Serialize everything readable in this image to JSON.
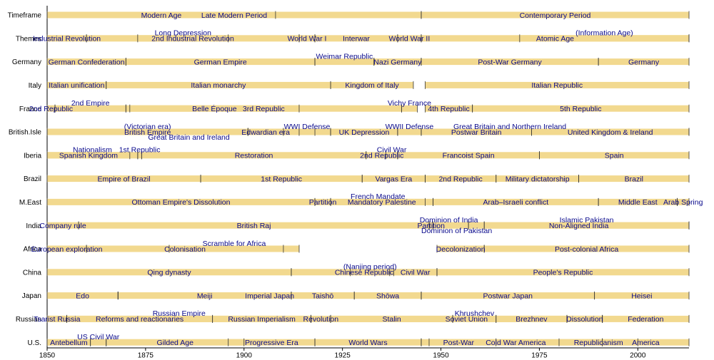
{
  "chart_data": {
    "type": "timeline",
    "xlim": [
      1850,
      2013
    ],
    "xticks": [
      1850,
      1875,
      1900,
      1925,
      1950,
      1975,
      2000
    ],
    "bar_color": "#f2d98f",
    "label_color": "#0a0a8c",
    "rows": [
      {
        "name": "Timeframe",
        "segments": [
          {
            "label": "Modern Age",
            "start": 1850,
            "end": 1908
          },
          {
            "label": "Late Modern Period",
            "start": 1850,
            "end": 1945
          },
          {
            "label": "Contemporary Period",
            "start": 1945,
            "end": 2013
          }
        ]
      },
      {
        "name": "Themes",
        "segments": [
          {
            "label": "Industrial Revolution",
            "start": 1850,
            "end": 1860
          },
          {
            "label": "2nd Industrial Revolution",
            "start": 1860,
            "end": 1914
          },
          {
            "label": "Long Depression",
            "start": 1873,
            "end": 1896
          },
          {
            "label": "World War I",
            "start": 1914,
            "end": 1918
          },
          {
            "label": "Interwar",
            "start": 1918,
            "end": 1939
          },
          {
            "label": "World War II",
            "start": 1939,
            "end": 1945
          },
          {
            "label": "Atomic Age",
            "start": 1945,
            "end": 2013
          },
          {
            "label": "(Information Age)",
            "start": 1970,
            "end": 2013
          }
        ]
      },
      {
        "name": "Germany",
        "segments": [
          {
            "label": "German Confederation",
            "start": 1850,
            "end": 1870
          },
          {
            "label": "German Empire",
            "start": 1870,
            "end": 1918
          },
          {
            "label": "Nazi Germany",
            "start": 1933,
            "end": 1945
          },
          {
            "label": "Weimar Republic",
            "start": 1918,
            "end": 1933
          },
          {
            "label": "Post-War Germany",
            "start": 1945,
            "end": 1990
          },
          {
            "label": "Germany",
            "start": 1990,
            "end": 2013
          }
        ]
      },
      {
        "name": "Italy",
        "segments": [
          {
            "label": "Italian unification",
            "start": 1850,
            "end": 1865
          },
          {
            "label": "Italian monarchy",
            "start": 1865,
            "end": 1922
          },
          {
            "label": "Kingdom of Italy",
            "start": 1922,
            "end": 1943
          },
          {
            "label": "Italian Republic",
            "start": 1946,
            "end": 2013
          }
        ]
      },
      {
        "name": "France",
        "segments": [
          {
            "label": "2nd Republic",
            "start": 1850,
            "end": 1852
          },
          {
            "label": "2nd Empire",
            "start": 1852,
            "end": 1870
          },
          {
            "label": "Belle Époque",
            "start": 1871,
            "end": 1914
          },
          {
            "label": "3rd Republic",
            "start": 1870,
            "end": 1940
          },
          {
            "label": "4th Republic",
            "start": 1946,
            "end": 1958
          },
          {
            "label": "Vichy France",
            "start": 1940,
            "end": 1944
          },
          {
            "label": "5th Republic",
            "start": 1958,
            "end": 2013
          }
        ]
      },
      {
        "name": "British.Isle",
        "segments": [
          {
            "label": "British Empire",
            "start": 1850,
            "end": 1901
          },
          {
            "label": "(Victorian era)",
            "start": 1850,
            "end": 1901
          },
          {
            "label": "Edwardian era",
            "start": 1901,
            "end": 1910
          },
          {
            "label": "Great Britain and Ireland",
            "start": 1850,
            "end": 1922
          },
          {
            "label": "UK Depression",
            "start": 1922,
            "end": 1939
          },
          {
            "label": "WWI Defense",
            "start": 1914,
            "end": 1918
          },
          {
            "label": "WWII Defense",
            "start": 1939,
            "end": 1945
          },
          {
            "label": "Postwar Britain",
            "start": 1945,
            "end": 1973
          },
          {
            "label": "United Kingdom & Ireland",
            "start": 1973,
            "end": 2013
          },
          {
            "label": "Great Britain and Northern Ireland",
            "start": 1922,
            "end": 2013
          }
        ]
      },
      {
        "name": "Iberia",
        "segments": [
          {
            "label": "Spanish Kingdom",
            "start": 1850,
            "end": 1871
          },
          {
            "label": "Nationalism",
            "start": 1850,
            "end": 1873
          },
          {
            "label": "1st Republic",
            "start": 1873,
            "end": 1874
          },
          {
            "label": "Restoration",
            "start": 1874,
            "end": 1931
          },
          {
            "label": "2nd Republic",
            "start": 1931,
            "end": 1939
          },
          {
            "label": "Civil War",
            "start": 1936,
            "end": 1939
          },
          {
            "label": "Francoist Spain",
            "start": 1939,
            "end": 1975
          },
          {
            "label": "Spain",
            "start": 1975,
            "end": 2013
          }
        ]
      },
      {
        "name": "Brazil",
        "segments": [
          {
            "label": "Empire of Brazil",
            "start": 1850,
            "end": 1889
          },
          {
            "label": "1st Republic",
            "start": 1889,
            "end": 1930
          },
          {
            "label": "Vargas Era",
            "start": 1930,
            "end": 1946
          },
          {
            "label": "2nd Republic",
            "start": 1946,
            "end": 1964
          },
          {
            "label": "Military dictatorship",
            "start": 1964,
            "end": 1985
          },
          {
            "label": "Brazil",
            "start": 1985,
            "end": 2013
          }
        ]
      },
      {
        "name": "M.East",
        "segments": [
          {
            "label": "Ottoman Empire's Dissolution",
            "start": 1850,
            "end": 1918
          },
          {
            "label": "Partition",
            "start": 1918,
            "end": 1922
          },
          {
            "label": "Mandatory Palestine",
            "start": 1922,
            "end": 1948
          },
          {
            "label": "French Mandate",
            "start": 1922,
            "end": 1946
          },
          {
            "label": "Arab–Israeli conflict",
            "start": 1948,
            "end": 1990
          },
          {
            "label": "Middle East",
            "start": 1990,
            "end": 2010
          },
          {
            "label": "Arab Spring",
            "start": 2010,
            "end": 2013
          }
        ]
      },
      {
        "name": "India",
        "segments": [
          {
            "label": "Company rule",
            "start": 1850,
            "end": 1858
          },
          {
            "label": "British Raj",
            "start": 1858,
            "end": 1947
          },
          {
            "label": "Partition",
            "start": 1947,
            "end": 1948
          },
          {
            "label": "Dominion of India",
            "start": 1947,
            "end": 1957
          },
          {
            "label": "Non-Aligned India",
            "start": 1957,
            "end": 2013
          },
          {
            "label": "Dominion of Pakistan",
            "start": 1947,
            "end": 1961
          },
          {
            "label": "Islamic Pakistan",
            "start": 1961,
            "end": 2013
          }
        ]
      },
      {
        "name": "Africa",
        "segments": [
          {
            "label": "European exploration",
            "start": 1850,
            "end": 1860
          },
          {
            "label": "Colonisation",
            "start": 1860,
            "end": 1910
          },
          {
            "label": "Scramble for Africa",
            "start": 1881,
            "end": 1914
          },
          {
            "label": "Decolonization",
            "start": 1949,
            "end": 1961
          },
          {
            "label": "Post-colonial Africa",
            "start": 1961,
            "end": 2013
          }
        ]
      },
      {
        "name": "China",
        "segments": [
          {
            "label": "Qing dynasty",
            "start": 1850,
            "end": 1912
          },
          {
            "label": "Chinese Republic",
            "start": 1912,
            "end": 1949
          },
          {
            "label": "(Nanjing period)",
            "start": 1927,
            "end": 1937
          },
          {
            "label": "Civil War",
            "start": 1938,
            "end": 1949
          },
          {
            "label": "People's Republic",
            "start": 1949,
            "end": 2013
          }
        ]
      },
      {
        "name": "Japan",
        "segments": [
          {
            "label": "Edo",
            "start": 1850,
            "end": 1868
          },
          {
            "label": "Meiji",
            "start": 1868,
            "end": 1912
          },
          {
            "label": "Imperial Japan",
            "start": 1868,
            "end": 1945
          },
          {
            "label": "Taishō",
            "start": 1912,
            "end": 1928
          },
          {
            "label": "Shōwa",
            "start": 1928,
            "end": 1945
          },
          {
            "label": "Postwar Japan",
            "start": 1945,
            "end": 1989
          },
          {
            "label": "Heisei",
            "start": 1989,
            "end": 2013
          }
        ]
      },
      {
        "name": "Russian",
        "segments": [
          {
            "label": "Tsarist Russia",
            "start": 1850,
            "end": 1855
          },
          {
            "label": "Reforms and reactionaries",
            "start": 1855,
            "end": 1892
          },
          {
            "label": "Russian Empire",
            "start": 1850,
            "end": 1917
          },
          {
            "label": "Russian Imperialism",
            "start": 1892,
            "end": 1917
          },
          {
            "label": "Revolution",
            "start": 1917,
            "end": 1922
          },
          {
            "label": "Stalin",
            "start": 1922,
            "end": 1953
          },
          {
            "label": "Soviet Union",
            "start": 1922,
            "end": 1991
          },
          {
            "label": "Khrushchev",
            "start": 1953,
            "end": 1964
          },
          {
            "label": "Brezhnev",
            "start": 1964,
            "end": 1982
          },
          {
            "label": "Dissolution",
            "start": 1982,
            "end": 1991
          },
          {
            "label": "Federation",
            "start": 1991,
            "end": 2013
          }
        ]
      },
      {
        "name": "U.S.",
        "segments": [
          {
            "label": "Antebellum",
            "start": 1850,
            "end": 1861
          },
          {
            "label": "US Civil War",
            "start": 1861,
            "end": 1865
          },
          {
            "label": "Gilded Age",
            "start": 1865,
            "end": 1900
          },
          {
            "label": "Progressive Era",
            "start": 1896,
            "end": 1918
          },
          {
            "label": "World Wars",
            "start": 1918,
            "end": 1945
          },
          {
            "label": "Post-War",
            "start": 1945,
            "end": 1964
          },
          {
            "label": "Cold War America",
            "start": 1947,
            "end": 1991
          },
          {
            "label": "Republicanism",
            "start": 1980,
            "end": 2000
          },
          {
            "label": "America",
            "start": 1991,
            "end": 2013
          }
        ]
      }
    ]
  }
}
